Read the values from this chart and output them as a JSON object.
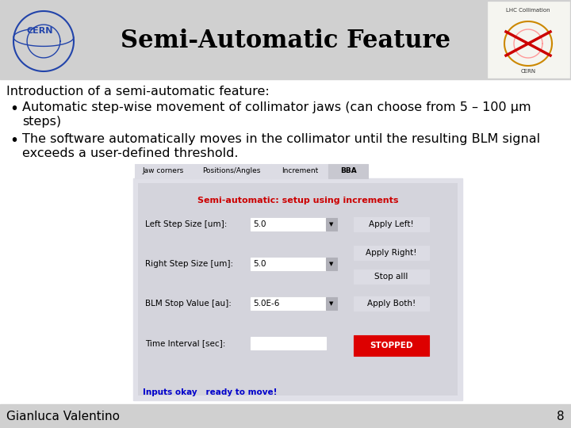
{
  "title": "Semi-Automatic Feature",
  "title_fontsize": 22,
  "bg_color": "#ffffff",
  "header_color": "#d0d0d0",
  "intro_text": "Introduction of a semi-automatic feature:",
  "bullet1_line1": "Automatic step-wise movement of collimator jaws (can choose from 5 – 100 μm",
  "bullet1_line2": "steps)",
  "bullet2_line1": "The software automatically moves in the collimator until the resulting BLM signal",
  "bullet2_line2": "exceeds a user-defined threshold.",
  "footer_text": "Gianluca Valentino",
  "page_num": "8",
  "tab_labels": [
    "Jaw corners",
    "Positions/Angles",
    "Increment",
    "BBA"
  ],
  "active_tab": "BBA",
  "panel_title": "Semi-automatic: setup using increments",
  "panel_title_color": "#cc0000",
  "field1_label": "Left Step Size [um]:",
  "field1_value": "5.0",
  "field2_label": "Right Step Size [um]:",
  "field2_value": "5.0",
  "field3_label": "BLM Stop Value [au]:",
  "field3_value": "5.0E-6",
  "field4_label": "Time Interval [sec]:",
  "btn1": "Apply Left!",
  "btn2": "Apply Right!",
  "btn3": "Stop alll",
  "btn4": "Apply Both!",
  "btn_stop": "STOPPED",
  "btn_stop_color": "#dd0000",
  "footer_note": "Inputs okay   ready to move!",
  "footer_note_color": "#0000cc",
  "panel_bg": "#e0e0e8",
  "panel_inner_bg": "#d8d8e0",
  "panel_border": "#888888",
  "font_size_body": 11.5,
  "font_size_panel": 7.5
}
